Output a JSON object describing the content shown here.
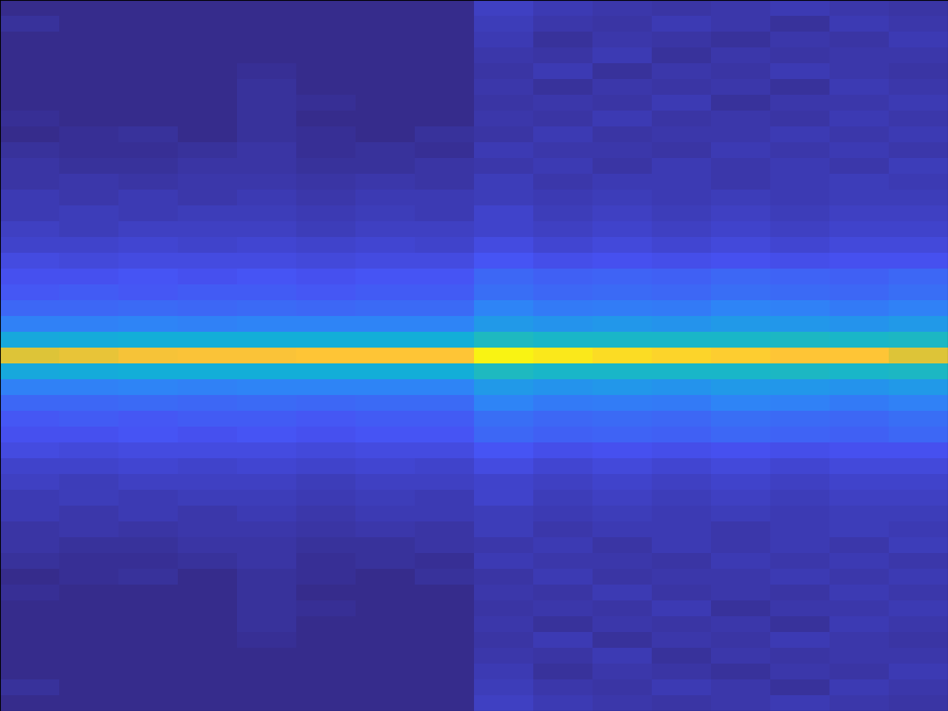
{
  "chart_data": {
    "type": "heatmap",
    "tick_labels": false,
    "color_range": [
      0,
      1
    ],
    "cells": [
      [
        0.01,
        0.01,
        0.01,
        0.01,
        0.01,
        0.01,
        0.01,
        0.01,
        0.08,
        0.06,
        0.05,
        0.04,
        0.05,
        0.06,
        0.05,
        0.04
      ],
      [
        0.03,
        0.01,
        0.01,
        0.01,
        0.01,
        0.01,
        0.01,
        0.01,
        0.07,
        0.05,
        0.04,
        0.06,
        0.05,
        0.03,
        0.06,
        0.05
      ],
      [
        0.01,
        0.01,
        0.01,
        0.01,
        0.01,
        0.01,
        0.01,
        0.01,
        0.06,
        0.03,
        0.05,
        0.04,
        0.03,
        0.05,
        0.04,
        0.06
      ],
      [
        0.01,
        0.01,
        0.01,
        0.01,
        0.01,
        0.01,
        0.01,
        0.01,
        0.05,
        0.04,
        0.06,
        0.03,
        0.05,
        0.04,
        0.05,
        0.05
      ],
      [
        0.01,
        0.01,
        0.01,
        0.01,
        0.02,
        0.01,
        0.01,
        0.01,
        0.04,
        0.06,
        0.03,
        0.05,
        0.04,
        0.06,
        0.05,
        0.04
      ],
      [
        0.01,
        0.01,
        0.01,
        0.01,
        0.03,
        0.01,
        0.01,
        0.01,
        0.05,
        0.03,
        0.05,
        0.04,
        0.05,
        0.03,
        0.06,
        0.05
      ],
      [
        0.01,
        0.01,
        0.01,
        0.01,
        0.03,
        0.02,
        0.01,
        0.01,
        0.04,
        0.05,
        0.04,
        0.06,
        0.03,
        0.05,
        0.05,
        0.06
      ],
      [
        0.02,
        0.01,
        0.01,
        0.01,
        0.03,
        0.01,
        0.01,
        0.01,
        0.05,
        0.04,
        0.06,
        0.04,
        0.05,
        0.04,
        0.06,
        0.05
      ],
      [
        0.01,
        0.02,
        0.03,
        0.01,
        0.03,
        0.02,
        0.01,
        0.03,
        0.04,
        0.06,
        0.04,
        0.05,
        0.05,
        0.06,
        0.05,
        0.06
      ],
      [
        0.03,
        0.02,
        0.02,
        0.03,
        0.04,
        0.02,
        0.03,
        0.02,
        0.06,
        0.05,
        0.05,
        0.04,
        0.06,
        0.05,
        0.06,
        0.05
      ],
      [
        0.04,
        0.03,
        0.03,
        0.04,
        0.04,
        0.03,
        0.03,
        0.04,
        0.05,
        0.06,
        0.04,
        0.06,
        0.05,
        0.06,
        0.05,
        0.07
      ],
      [
        0.04,
        0.05,
        0.04,
        0.05,
        0.05,
        0.04,
        0.05,
        0.04,
        0.07,
        0.05,
        0.06,
        0.06,
        0.05,
        0.06,
        0.07,
        0.06
      ],
      [
        0.06,
        0.05,
        0.06,
        0.05,
        0.06,
        0.05,
        0.06,
        0.06,
        0.07,
        0.06,
        0.07,
        0.06,
        0.07,
        0.06,
        0.07,
        0.07
      ],
      [
        0.06,
        0.07,
        0.06,
        0.07,
        0.07,
        0.06,
        0.07,
        0.06,
        0.09,
        0.07,
        0.08,
        0.07,
        0.08,
        0.07,
        0.08,
        0.08
      ],
      [
        0.08,
        0.07,
        0.08,
        0.08,
        0.08,
        0.07,
        0.08,
        0.08,
        0.09,
        0.08,
        0.09,
        0.08,
        0.09,
        0.08,
        0.09,
        0.09
      ],
      [
        0.09,
        0.09,
        0.1,
        0.09,
        0.1,
        0.09,
        0.1,
        0.09,
        0.12,
        0.1,
        0.11,
        0.1,
        0.11,
        0.1,
        0.11,
        0.11
      ],
      [
        0.12,
        0.11,
        0.12,
        0.12,
        0.12,
        0.11,
        0.12,
        0.12,
        0.15,
        0.13,
        0.14,
        0.13,
        0.14,
        0.13,
        0.14,
        0.14
      ],
      [
        0.14,
        0.14,
        0.15,
        0.14,
        0.15,
        0.14,
        0.15,
        0.15,
        0.2,
        0.18,
        0.19,
        0.18,
        0.2,
        0.19,
        0.18,
        0.2
      ],
      [
        0.16,
        0.17,
        0.16,
        0.17,
        0.17,
        0.16,
        0.17,
        0.17,
        0.22,
        0.2,
        0.21,
        0.2,
        0.22,
        0.21,
        0.2,
        0.22
      ],
      [
        0.2,
        0.2,
        0.21,
        0.2,
        0.21,
        0.2,
        0.21,
        0.21,
        0.28,
        0.25,
        0.26,
        0.25,
        0.28,
        0.27,
        0.25,
        0.27
      ],
      [
        0.27,
        0.27,
        0.28,
        0.27,
        0.28,
        0.28,
        0.28,
        0.28,
        0.35,
        0.33,
        0.34,
        0.33,
        0.35,
        0.34,
        0.33,
        0.35
      ],
      [
        0.4,
        0.41,
        0.42,
        0.42,
        0.42,
        0.42,
        0.42,
        0.42,
        0.48,
        0.46,
        0.46,
        0.46,
        0.46,
        0.47,
        0.46,
        0.47
      ],
      [
        0.8,
        0.82,
        0.84,
        0.85,
        0.85,
        0.86,
        0.86,
        0.86,
        0.98,
        0.95,
        0.92,
        0.9,
        0.88,
        0.86,
        0.86,
        0.8
      ],
      [
        0.4,
        0.41,
        0.42,
        0.42,
        0.42,
        0.42,
        0.42,
        0.42,
        0.48,
        0.46,
        0.46,
        0.46,
        0.46,
        0.47,
        0.46,
        0.47
      ],
      [
        0.27,
        0.27,
        0.28,
        0.27,
        0.28,
        0.28,
        0.28,
        0.28,
        0.35,
        0.33,
        0.34,
        0.33,
        0.35,
        0.34,
        0.33,
        0.35
      ],
      [
        0.2,
        0.2,
        0.21,
        0.2,
        0.21,
        0.2,
        0.21,
        0.21,
        0.28,
        0.25,
        0.26,
        0.25,
        0.28,
        0.27,
        0.25,
        0.27
      ],
      [
        0.16,
        0.17,
        0.16,
        0.17,
        0.17,
        0.16,
        0.17,
        0.17,
        0.22,
        0.2,
        0.21,
        0.2,
        0.22,
        0.21,
        0.2,
        0.22
      ],
      [
        0.14,
        0.14,
        0.15,
        0.14,
        0.15,
        0.14,
        0.15,
        0.15,
        0.2,
        0.18,
        0.19,
        0.18,
        0.2,
        0.19,
        0.18,
        0.2
      ],
      [
        0.12,
        0.11,
        0.12,
        0.12,
        0.12,
        0.11,
        0.12,
        0.12,
        0.15,
        0.13,
        0.14,
        0.13,
        0.14,
        0.13,
        0.14,
        0.14
      ],
      [
        0.09,
        0.09,
        0.1,
        0.09,
        0.1,
        0.09,
        0.1,
        0.09,
        0.12,
        0.1,
        0.11,
        0.1,
        0.11,
        0.1,
        0.11,
        0.11
      ],
      [
        0.08,
        0.07,
        0.08,
        0.08,
        0.08,
        0.07,
        0.08,
        0.08,
        0.09,
        0.08,
        0.09,
        0.08,
        0.09,
        0.08,
        0.09,
        0.09
      ],
      [
        0.06,
        0.07,
        0.06,
        0.07,
        0.07,
        0.06,
        0.07,
        0.06,
        0.09,
        0.07,
        0.08,
        0.07,
        0.08,
        0.07,
        0.08,
        0.08
      ],
      [
        0.06,
        0.05,
        0.06,
        0.05,
        0.06,
        0.05,
        0.06,
        0.06,
        0.07,
        0.06,
        0.07,
        0.06,
        0.07,
        0.06,
        0.07,
        0.07
      ],
      [
        0.04,
        0.05,
        0.04,
        0.05,
        0.05,
        0.04,
        0.05,
        0.04,
        0.07,
        0.05,
        0.06,
        0.06,
        0.05,
        0.06,
        0.07,
        0.06
      ],
      [
        0.04,
        0.03,
        0.03,
        0.04,
        0.04,
        0.03,
        0.03,
        0.04,
        0.05,
        0.06,
        0.04,
        0.06,
        0.05,
        0.06,
        0.05,
        0.07
      ],
      [
        0.03,
        0.02,
        0.02,
        0.03,
        0.04,
        0.02,
        0.03,
        0.02,
        0.06,
        0.05,
        0.05,
        0.04,
        0.06,
        0.05,
        0.06,
        0.05
      ],
      [
        0.01,
        0.02,
        0.03,
        0.01,
        0.03,
        0.02,
        0.01,
        0.03,
        0.04,
        0.06,
        0.04,
        0.05,
        0.05,
        0.06,
        0.05,
        0.06
      ],
      [
        0.02,
        0.01,
        0.01,
        0.01,
        0.03,
        0.01,
        0.01,
        0.01,
        0.05,
        0.04,
        0.06,
        0.04,
        0.05,
        0.04,
        0.06,
        0.05
      ],
      [
        0.01,
        0.01,
        0.01,
        0.01,
        0.03,
        0.02,
        0.01,
        0.01,
        0.04,
        0.05,
        0.04,
        0.06,
        0.03,
        0.05,
        0.05,
        0.06
      ],
      [
        0.01,
        0.01,
        0.01,
        0.01,
        0.03,
        0.01,
        0.01,
        0.01,
        0.05,
        0.03,
        0.05,
        0.04,
        0.05,
        0.03,
        0.06,
        0.05
      ],
      [
        0.01,
        0.01,
        0.01,
        0.01,
        0.02,
        0.01,
        0.01,
        0.01,
        0.04,
        0.06,
        0.03,
        0.05,
        0.04,
        0.06,
        0.05,
        0.04
      ],
      [
        0.01,
        0.01,
        0.01,
        0.01,
        0.01,
        0.01,
        0.01,
        0.01,
        0.05,
        0.04,
        0.06,
        0.03,
        0.05,
        0.04,
        0.05,
        0.05
      ],
      [
        0.01,
        0.01,
        0.01,
        0.01,
        0.01,
        0.01,
        0.01,
        0.01,
        0.06,
        0.03,
        0.05,
        0.04,
        0.03,
        0.05,
        0.04,
        0.06
      ],
      [
        0.03,
        0.01,
        0.01,
        0.01,
        0.01,
        0.01,
        0.01,
        0.01,
        0.07,
        0.05,
        0.04,
        0.06,
        0.05,
        0.03,
        0.06,
        0.05
      ],
      [
        0.01,
        0.01,
        0.01,
        0.01,
        0.01,
        0.01,
        0.01,
        0.01,
        0.08,
        0.06,
        0.05,
        0.04,
        0.05,
        0.06,
        0.05,
        0.04
      ]
    ]
  }
}
